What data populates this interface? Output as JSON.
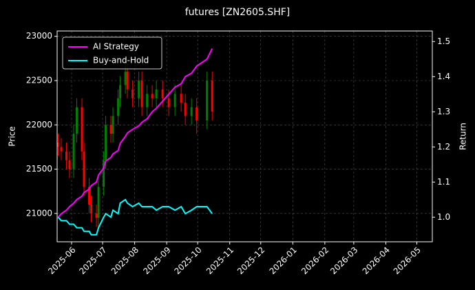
{
  "chart_data": {
    "type": "candlestick",
    "title": "futures [ZN2605.SHF]",
    "y_label": "Price",
    "y2_label": "Return",
    "x": [
      "2025-05-19",
      "2025-05-22",
      "2025-05-27",
      "2025-05-30",
      "2025-06-03",
      "2025-06-06",
      "2025-06-11",
      "2025-06-13",
      "2025-06-18",
      "2025-06-20",
      "2025-06-25",
      "2025-06-27",
      "2025-07-02",
      "2025-07-04",
      "2025-07-09",
      "2025-07-11",
      "2025-07-16",
      "2025-07-18",
      "2025-07-23",
      "2025-07-25",
      "2025-07-30",
      "2025-08-05",
      "2025-08-08",
      "2025-08-13",
      "2025-08-18",
      "2025-08-22",
      "2025-08-28",
      "2025-09-03",
      "2025-09-09",
      "2025-09-15",
      "2025-09-19",
      "2025-09-25",
      "2025-09-30",
      "2025-10-10",
      "2025-10-15"
    ],
    "candles": {
      "up_color": "#008000",
      "down_color": "#ff0000",
      "open": [
        21800,
        21750,
        21700,
        21600,
        21500,
        21900,
        22200,
        21700,
        21300,
        21100,
        21000,
        20950,
        21300,
        21600,
        22000,
        21900,
        22100,
        22300,
        22450,
        22600,
        22400,
        22300,
        22500,
        22200,
        22350,
        22300,
        22400,
        22300,
        22200,
        22350,
        22250,
        22100,
        22200,
        22050,
        22500
      ],
      "high": [
        21900,
        21850,
        21800,
        21700,
        22000,
        22300,
        22300,
        21800,
        21400,
        21200,
        21100,
        21400,
        21700,
        22100,
        22100,
        22200,
        22400,
        22550,
        22700,
        22700,
        22500,
        22600,
        22600,
        22450,
        22450,
        22500,
        22500,
        22400,
        22450,
        22450,
        22350,
        22300,
        22300,
        22600,
        22600
      ],
      "low": [
        21650,
        21600,
        21500,
        21400,
        21400,
        21800,
        21600,
        21200,
        21000,
        20900,
        20850,
        20850,
        21200,
        21500,
        21800,
        21800,
        22000,
        22200,
        22350,
        22300,
        22200,
        22200,
        22100,
        22100,
        22200,
        22200,
        22200,
        22100,
        22100,
        22150,
        22000,
        22000,
        21900,
        21950,
        22050
      ],
      "close": [
        21750,
        21700,
        21600,
        21500,
        21900,
        22200,
        21700,
        21300,
        21100,
        21000,
        20950,
        21300,
        21600,
        22000,
        21900,
        22100,
        22300,
        22450,
        22600,
        22400,
        22300,
        22500,
        22200,
        22350,
        22300,
        22400,
        22300,
        22200,
        22350,
        22250,
        22100,
        22200,
        22050,
        22500,
        22150
      ]
    },
    "series": [
      {
        "name": "AI Strategy",
        "color": "#ff00ff",
        "axis": "y2",
        "values": [
          1.0,
          1.01,
          1.02,
          1.03,
          1.04,
          1.05,
          1.06,
          1.07,
          1.08,
          1.09,
          1.1,
          1.12,
          1.14,
          1.16,
          1.17,
          1.18,
          1.19,
          1.21,
          1.23,
          1.24,
          1.25,
          1.26,
          1.27,
          1.28,
          1.3,
          1.31,
          1.33,
          1.35,
          1.37,
          1.38,
          1.4,
          1.41,
          1.43,
          1.45,
          1.48
        ]
      },
      {
        "name": "Buy-and-Hold",
        "color": "#00ffff",
        "axis": "y2",
        "values": [
          1.0,
          0.99,
          0.99,
          0.98,
          0.98,
          0.97,
          0.97,
          0.96,
          0.96,
          0.95,
          0.95,
          0.97,
          1.0,
          1.01,
          1.0,
          1.02,
          1.01,
          1.04,
          1.05,
          1.04,
          1.03,
          1.04,
          1.03,
          1.03,
          1.03,
          1.02,
          1.03,
          1.03,
          1.02,
          1.03,
          1.01,
          1.02,
          1.03,
          1.03,
          1.01
        ]
      }
    ],
    "xlim": [
      "2025-05-18",
      "2026-05-16"
    ],
    "xticks": [
      {
        "value": "2025-06-01",
        "label": "2025-06"
      },
      {
        "value": "2025-07-01",
        "label": "2025-07"
      },
      {
        "value": "2025-08-01",
        "label": "2025-08"
      },
      {
        "value": "2025-09-01",
        "label": "2025-09"
      },
      {
        "value": "2025-10-01",
        "label": "2025-10"
      },
      {
        "value": "2025-11-01",
        "label": "2025-11"
      },
      {
        "value": "2025-12-01",
        "label": "2025-12"
      },
      {
        "value": "2026-01-01",
        "label": "2026-01"
      },
      {
        "value": "2026-02-01",
        "label": "2026-02"
      },
      {
        "value": "2026-03-01",
        "label": "2026-03"
      },
      {
        "value": "2026-04-01",
        "label": "2026-04"
      },
      {
        "value": "2026-05-01",
        "label": "2026-05"
      }
    ],
    "ylim": [
      20680,
      23060
    ],
    "yticks": [
      21000,
      21500,
      22000,
      22500,
      23000
    ],
    "y2lim": [
      0.93,
      1.53
    ],
    "y2ticks": [
      {
        "value": 1,
        "label": "1.0"
      },
      1.1,
      1.2,
      1.3,
      1.4,
      1.5
    ],
    "grid": true,
    "legend": "upper-left"
  }
}
